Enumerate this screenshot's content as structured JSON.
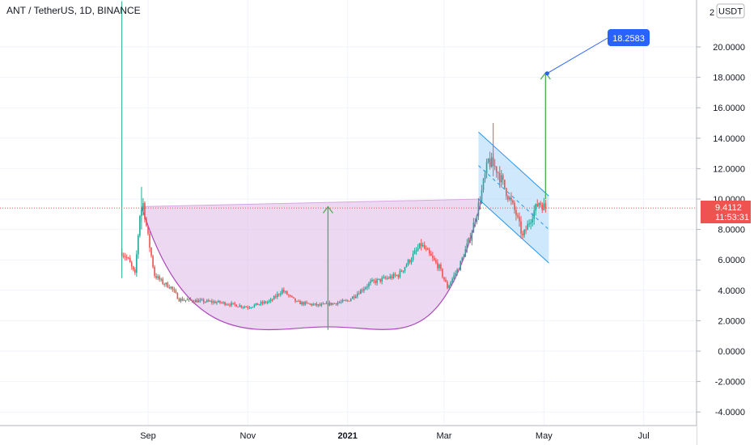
{
  "header": {
    "title": "ANT / TetherUS, 1D, BINANCE"
  },
  "currency_badge": "USDT",
  "price_badge": {
    "price": "9.4112",
    "countdown": "11:53:31",
    "color": "#ef5350"
  },
  "target_label": {
    "text": "18.2583",
    "color": "#2962ff"
  },
  "colors": {
    "up": "#26a69a",
    "down": "#ef5350",
    "cup_fill": "#e1bee7",
    "cup_stroke": "#ab47bc",
    "channel_fill": "#bbdefb",
    "channel_stroke": "#2196f3",
    "arrow": "#4caf50",
    "grid": "#f0f3fa"
  },
  "chart_data": {
    "type": "candlestick",
    "title": "ANT / TetherUS, 1D, BINANCE",
    "x_ticks": [
      "Sep",
      "Nov",
      "2021",
      "Mar",
      "May",
      "Jul"
    ],
    "y_ticks": [
      -4,
      -2,
      0,
      2,
      4,
      6,
      8,
      10,
      12,
      14,
      16,
      18,
      20
    ],
    "ylim": [
      -4.5,
      22.4
    ],
    "grid": true,
    "last_price": 9.4112,
    "target_price": 18.2583,
    "series_close_waypoints": [
      {
        "x": "2020-08-16",
        "y": 6.5
      },
      {
        "x": "2020-08-20",
        "y": 6.0
      },
      {
        "x": "2020-08-24",
        "y": 5.0
      },
      {
        "x": "2020-08-27",
        "y": 9.0
      },
      {
        "x": "2020-08-29",
        "y": 9.7
      },
      {
        "x": "2020-09-01",
        "y": 7.5
      },
      {
        "x": "2020-09-05",
        "y": 5.0
      },
      {
        "x": "2020-09-10",
        "y": 4.5
      },
      {
        "x": "2020-09-15",
        "y": 4.2
      },
      {
        "x": "2020-09-20",
        "y": 3.4
      },
      {
        "x": "2020-10-01",
        "y": 3.3
      },
      {
        "x": "2020-10-15",
        "y": 3.2
      },
      {
        "x": "2020-11-01",
        "y": 2.9
      },
      {
        "x": "2020-11-15",
        "y": 3.3
      },
      {
        "x": "2020-11-22",
        "y": 4.0
      },
      {
        "x": "2020-12-01",
        "y": 3.2
      },
      {
        "x": "2020-12-15",
        "y": 3.0
      },
      {
        "x": "2021-01-01",
        "y": 3.3
      },
      {
        "x": "2021-01-15",
        "y": 4.5
      },
      {
        "x": "2021-02-01",
        "y": 5.0
      },
      {
        "x": "2021-02-15",
        "y": 7.0
      },
      {
        "x": "2021-02-26",
        "y": 5.5
      },
      {
        "x": "2021-03-03",
        "y": 4.2
      },
      {
        "x": "2021-03-10",
        "y": 5.5
      },
      {
        "x": "2021-03-17",
        "y": 7.5
      },
      {
        "x": "2021-03-23",
        "y": 10.0
      },
      {
        "x": "2021-03-28",
        "y": 12.5
      },
      {
        "x": "2021-04-02",
        "y": 12.0
      },
      {
        "x": "2021-04-08",
        "y": 10.5
      },
      {
        "x": "2021-04-14",
        "y": 9.0
      },
      {
        "x": "2021-04-18",
        "y": 7.5
      },
      {
        "x": "2021-04-24",
        "y": 9.0
      },
      {
        "x": "2021-04-28",
        "y": 9.8
      },
      {
        "x": "2021-05-02",
        "y": 9.41
      }
    ],
    "annotations": [
      {
        "type": "cup",
        "start": {
          "x": "2020-08-28",
          "y": 9.5
        },
        "end": {
          "x": "2021-03-24",
          "y": 10.0
        },
        "bottom": {
          "x": "2020-12-20",
          "y": 1.6
        }
      },
      {
        "type": "arrow",
        "from": {
          "x": "2020-12-20",
          "y": 1.4
        },
        "to": {
          "x": "2020-12-20",
          "y": 9.5
        }
      },
      {
        "type": "channel",
        "corners": [
          {
            "x": "2021-03-22",
            "y": 14.4
          },
          {
            "x": "2021-05-04",
            "y": 10.2
          },
          {
            "x": "2021-05-04",
            "y": 5.8
          },
          {
            "x": "2021-03-22",
            "y": 10.0
          }
        ]
      },
      {
        "type": "arrow",
        "from": {
          "x": "2021-05-02",
          "y": 10.0
        },
        "to": {
          "x": "2021-05-02",
          "y": 18.3
        }
      },
      {
        "type": "callout",
        "at": {
          "x": "2021-05-03",
          "y": 18.26
        },
        "text": "18.2583"
      }
    ]
  }
}
